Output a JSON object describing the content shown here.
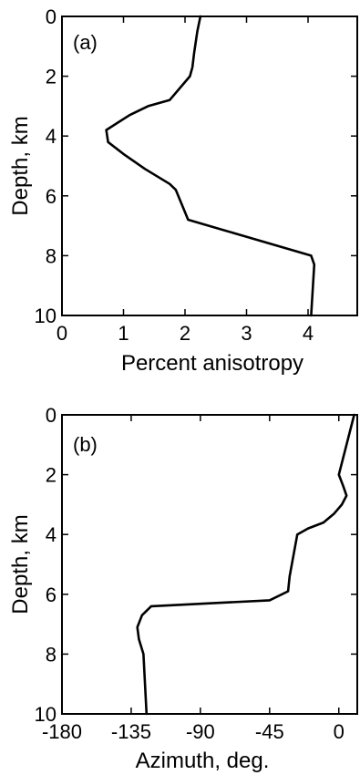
{
  "chart_data": [
    {
      "type": "line",
      "panel_label": "(a)",
      "xlabel": "Percent anisotropy",
      "ylabel": "Depth, km",
      "xlim": [
        0,
        4.8
      ],
      "ylim": [
        10,
        0
      ],
      "x_ticks": [
        0,
        1,
        2,
        3,
        4
      ],
      "x_tick_labels": [
        "0",
        "1",
        "2",
        "3",
        "4"
      ],
      "y_ticks": [
        0,
        2,
        4,
        6,
        8,
        10
      ],
      "y_tick_labels": [
        "0",
        "2",
        "4",
        "6",
        "8",
        "10"
      ],
      "grid": false,
      "series": [
        {
          "x": [
            2.25,
            2.2,
            2.15,
            2.12,
            2.08,
            1.75,
            1.4,
            1.1,
            0.72,
            0.75,
            1.0,
            1.35,
            1.75,
            1.85,
            2.05,
            4.05,
            4.1,
            4.08,
            4.05
          ],
          "y": [
            0,
            0.5,
            1.2,
            1.7,
            2.0,
            2.8,
            3.0,
            3.3,
            3.8,
            4.2,
            4.6,
            5.1,
            5.6,
            5.8,
            6.8,
            8.0,
            8.3,
            9.0,
            10.0
          ]
        }
      ]
    },
    {
      "type": "line",
      "panel_label": "(b)",
      "xlabel": "Azimuth, deg.",
      "ylabel": "Depth, km",
      "xlim": [
        -180,
        12
      ],
      "ylim": [
        10,
        0
      ],
      "x_ticks": [
        -180,
        -135,
        -90,
        -45,
        0
      ],
      "x_tick_labels": [
        "-180",
        "-135",
        "-90",
        "-45",
        "0"
      ],
      "y_ticks": [
        0,
        2,
        4,
        6,
        8,
        10
      ],
      "y_tick_labels": [
        "0",
        "2",
        "4",
        "6",
        "8",
        "10"
      ],
      "grid": false,
      "series": [
        {
          "x": [
            10,
            5,
            0,
            3,
            5,
            2,
            -3,
            -10,
            -20,
            -27,
            -32,
            -33,
            -45,
            -122,
            -128,
            -131,
            -130,
            -127,
            -126,
            -125
          ],
          "y": [
            0,
            1.0,
            2.0,
            2.4,
            2.7,
            3.0,
            3.3,
            3.6,
            3.8,
            4.0,
            5.4,
            5.9,
            6.2,
            6.4,
            6.7,
            7.1,
            7.5,
            8.0,
            9.0,
            10.0
          ]
        }
      ]
    }
  ]
}
